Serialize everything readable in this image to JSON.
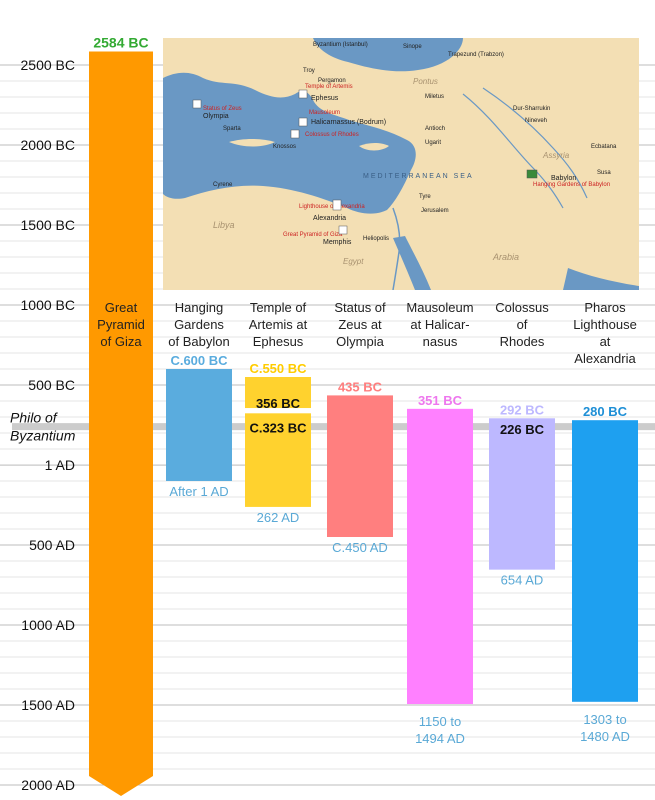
{
  "chart_data": {
    "type": "bar",
    "subtype": "floating-range",
    "orientation": "vertical",
    "y_axis": {
      "reversed": true,
      "unit": "year (negative = BC)",
      "range": [
        -2600,
        2100
      ],
      "ticks": [
        {
          "value": -2500,
          "label": "2500 BC"
        },
        {
          "value": -2000,
          "label": "2000 BC"
        },
        {
          "value": -1500,
          "label": "1500 BC"
        },
        {
          "value": -1000,
          "label": "1000 BC"
        },
        {
          "value": -500,
          "label": "500 BC"
        },
        {
          "value": 1,
          "label": "1 AD"
        },
        {
          "value": 500,
          "label": "500 AD"
        },
        {
          "value": 1000,
          "label": "1000 AD"
        },
        {
          "value": 1500,
          "label": "1500 AD"
        },
        {
          "value": 2000,
          "label": "2000 AD"
        }
      ],
      "grid": true
    },
    "reference_line": {
      "value": -240,
      "label_line1": "Philo of",
      "label_line2": "Byzantium",
      "color": "#cccccc"
    },
    "bars": [
      {
        "name_lines": [
          "Great",
          "Pyramid",
          "of Giza"
        ],
        "start": -2584,
        "end": 2100,
        "color": "#ff9900",
        "start_label": "2584 BC",
        "start_label_color": "#33aa33",
        "end_label": "",
        "end_label_color": "#5aa9d6"
      },
      {
        "name_lines": [
          "Hanging",
          "Gardens",
          "of Babylon"
        ],
        "start": -600,
        "end": 100,
        "color": "#5aacde",
        "start_label": "C.600 BC",
        "start_label_color": "#5aacde",
        "end_label": "After 1 AD",
        "end_label_color": "#5aa9d6"
      },
      {
        "name_lines": [
          "Temple of",
          "Artemis at",
          "Ephesus"
        ],
        "start": -550,
        "end": 262,
        "color": "#ffd22e",
        "start_label": "C.550 BC",
        "start_label_color": "#ffcc00",
        "end_label": "262 AD",
        "end_label_color": "#5aa9d6",
        "gap": {
          "start": -356,
          "end": -323
        },
        "inner_labels": [
          "356 BC",
          "C.323 BC"
        ]
      },
      {
        "name_lines": [
          "Status of",
          "Zeus at",
          "Olympia"
        ],
        "start": -435,
        "end": 450,
        "color": "#ff7f7f",
        "start_label": "435 BC",
        "start_label_color": "#ff7f7f",
        "end_label": "C.450 AD",
        "end_label_color": "#5aa9d6"
      },
      {
        "name_lines": [
          "Mausoleum",
          "at Halicar-",
          "nasus"
        ],
        "start": -351,
        "end": 1494,
        "color": "#ff80ff",
        "start_label": "351 BC",
        "start_label_color": "#ee77ee",
        "end_label_line1": "1150 to",
        "end_label_line2": "1494 AD",
        "end_label_color": "#5aa9d6"
      },
      {
        "name_lines": [
          "Colossus",
          "of",
          "Rhodes"
        ],
        "start": -292,
        "end": 654,
        "color": "#bdb8ff",
        "start_label": "292 BC",
        "start_label_color": "#bdb8ff",
        "end_label": "654 AD",
        "end_label_color": "#5aa9d6",
        "inner_labels": [
          "226 BC"
        ],
        "inner_value": -226
      },
      {
        "name_lines": [
          "Pharos",
          "Lighthouse",
          "at",
          "Alexandria"
        ],
        "start": -280,
        "end": 1480,
        "color": "#1ea0f0",
        "start_label": "280 BC",
        "start_label_color": "#1e8fd6",
        "end_label_line1": "1303 to",
        "end_label_line2": "1480 AD",
        "end_label_color": "#5aa9d6"
      }
    ]
  },
  "map": {
    "sea_labels": [
      "MEDITERRANEAN SEA"
    ],
    "land_labels": [
      "Libya",
      "Arabia",
      "Assyria",
      "Pontus",
      "Egypt"
    ],
    "wonder_labels": [
      "Status of Zeus",
      "Temple of Artemis",
      "Mausoleum",
      "Colossus of Rhodes",
      "Lighthouse of Alexandria",
      "Great Pyramid of Giza",
      "Hanging Gardens of Babylon"
    ],
    "city_labels": [
      "Byzantium (Istanbul)",
      "Sinope",
      "Trapezund (Trabzon)",
      "Troy",
      "Pergamon",
      "Ephesus",
      "Halicarnassus (Bodrum)",
      "Olympia",
      "Sparta",
      "Knossos",
      "Cyrene",
      "Antioch",
      "Ugarit",
      "Tyre",
      "Jerusalem",
      "Alexandria",
      "Memphis",
      "Heliopolis",
      "Babylon",
      "Nineveh",
      "Dur-Sharrukin",
      "Ecbatana",
      "Susa",
      "Miletus"
    ]
  }
}
